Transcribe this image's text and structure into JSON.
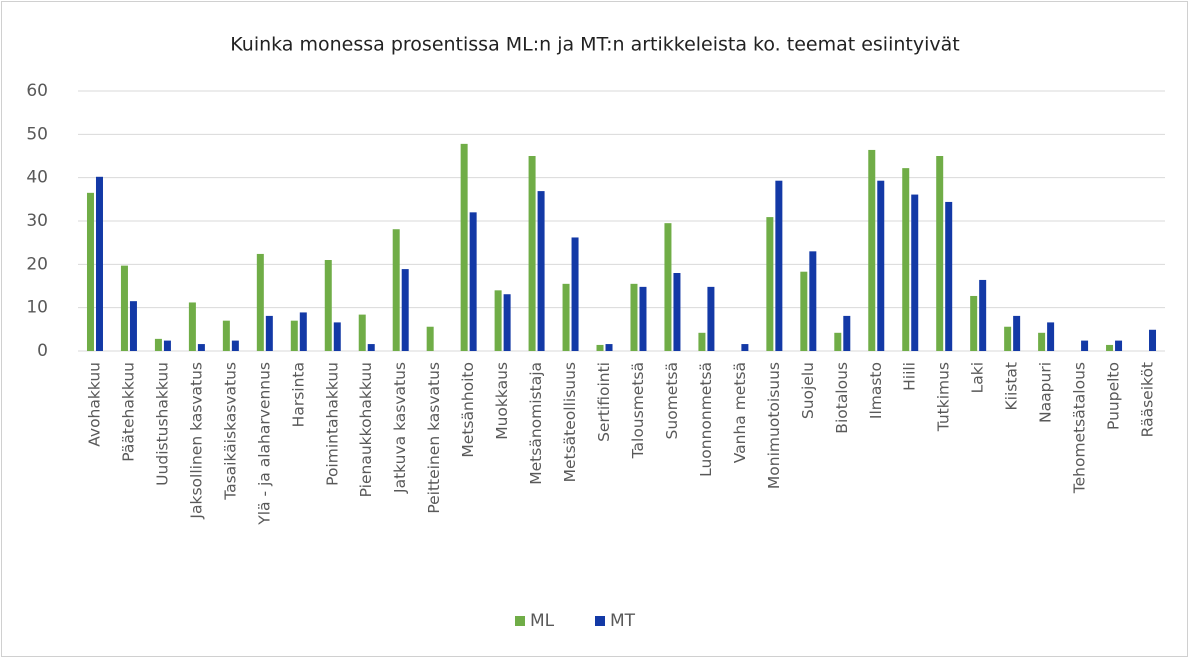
{
  "chart_data": {
    "type": "bar",
    "title": "Kuinka monessa prosentissa ML:n ja MT:n artikkeleista ko. teemat esiintyivät",
    "categories": [
      "Avohakkuu",
      "Päätehakkuu",
      "Uudistushakkuu",
      "Jaksollinen kasvatus",
      "Tasaikäiskasvatus",
      "Ylä - ja alaharvennus",
      "Harsinta",
      "Poimintahakkuu",
      "Pienaukkohakkuu",
      "Jatkuva kasvatus",
      "Peitteinen kasvatus",
      "Metsänhoito",
      "Muokkaus",
      "Metsänomistaja",
      "Metsäteollisuus",
      "Sertifiointi",
      "Talousmetsä",
      "Suometsä",
      "Luonnonmetsä",
      "Vanha metsä",
      "Monimuotoisuus",
      "Suojelu",
      "Biotalous",
      "Ilmasto",
      "Hiili",
      "Tutkimus",
      "Laki",
      "Kiistat",
      "Naapuri",
      "Tehometsätalous",
      "Puupelto",
      "Rääseiköt"
    ],
    "series": [
      {
        "name": "ML",
        "color": "#70ad47",
        "values": [
          36.5,
          19.7,
          2.8,
          11.2,
          7.0,
          22.4,
          7.0,
          21.0,
          8.4,
          28.1,
          5.6,
          47.8,
          14.0,
          45.0,
          15.5,
          1.4,
          15.5,
          29.5,
          4.2,
          0,
          30.9,
          18.3,
          4.2,
          46.4,
          42.2,
          45.0,
          12.7,
          5.6,
          4.2,
          0,
          1.4,
          0
        ]
      },
      {
        "name": "MT",
        "color": "#1339a6",
        "values": [
          40.2,
          11.5,
          2.4,
          1.6,
          2.4,
          8.1,
          8.9,
          6.6,
          1.6,
          18.9,
          0,
          32.0,
          13.1,
          36.9,
          26.2,
          1.6,
          14.8,
          18.0,
          14.8,
          1.6,
          39.3,
          23.0,
          8.1,
          39.3,
          36.1,
          34.4,
          16.4,
          8.1,
          6.6,
          2.4,
          2.4,
          4.9
        ]
      }
    ],
    "ylim": [
      0,
      60
    ],
    "yticks": [
      0,
      10,
      20,
      30,
      40,
      50,
      60
    ],
    "grid": true,
    "legend": "bottom"
  }
}
